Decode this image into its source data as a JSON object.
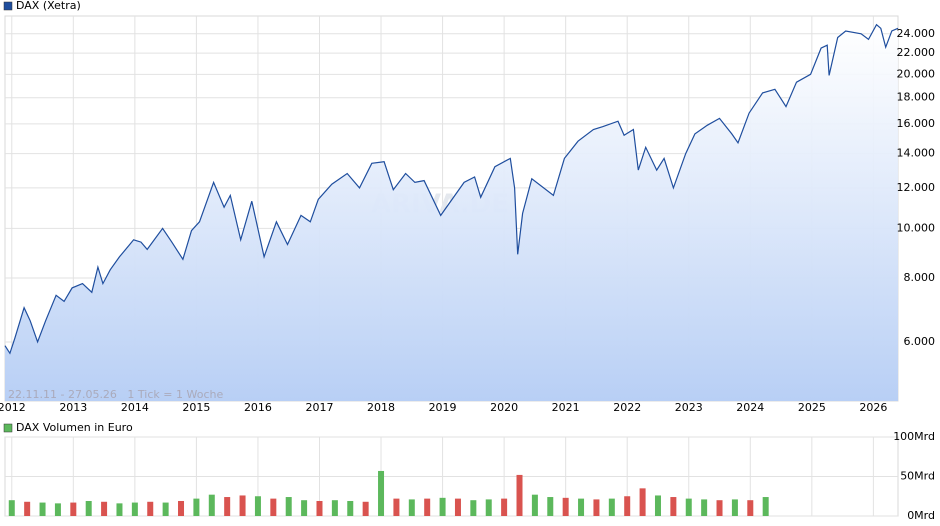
{
  "chart_data": [
    {
      "type": "line",
      "legend": "DAX (Xetra)",
      "annotation": "22.11.11 - 27.05.26   1 Tick = 1 Woche",
      "watermark": "ARIVA.DE",
      "log_scale": true,
      "grid": true,
      "color": "#1f4e9e",
      "fill_color": "#b8cff5",
      "xlim": [
        2011.89,
        2026.4
      ],
      "xticks": [
        2012,
        2013,
        2014,
        2015,
        2016,
        2017,
        2018,
        2019,
        2020,
        2021,
        2022,
        2023,
        2024,
        2025,
        2026
      ],
      "ylim": [
        4600,
        26000
      ],
      "yticks": [
        {
          "value": 6000,
          "label": "6.000"
        },
        {
          "value": 8000,
          "label": "8.000"
        },
        {
          "value": 10000,
          "label": "10.000"
        },
        {
          "value": 12000,
          "label": "12.000"
        },
        {
          "value": 14000,
          "label": "14.000"
        },
        {
          "value": 16000,
          "label": "16.000"
        },
        {
          "value": 18000,
          "label": "18.000"
        },
        {
          "value": 20000,
          "label": "20.000"
        },
        {
          "value": 22000,
          "label": "22.000"
        },
        {
          "value": 24000,
          "label": "24.000"
        }
      ],
      "x": [
        2011.89,
        2011.97,
        2012.05,
        2012.2,
        2012.3,
        2012.42,
        2012.55,
        2012.72,
        2012.85,
        2012.98,
        2013.15,
        2013.3,
        2013.4,
        2013.48,
        2013.6,
        2013.75,
        2013.98,
        2014.1,
        2014.2,
        2014.45,
        2014.6,
        2014.78,
        2014.92,
        2015.05,
        2015.28,
        2015.45,
        2015.55,
        2015.72,
        2015.9,
        2016.1,
        2016.3,
        2016.48,
        2016.7,
        2016.85,
        2016.98,
        2017.2,
        2017.45,
        2017.65,
        2017.85,
        2018.05,
        2018.2,
        2018.4,
        2018.55,
        2018.7,
        2018.97,
        2019.2,
        2019.35,
        2019.52,
        2019.62,
        2019.85,
        2020.1,
        2020.17,
        2020.22,
        2020.3,
        2020.45,
        2020.8,
        2020.98,
        2021.2,
        2021.45,
        2021.6,
        2021.85,
        2021.95,
        2022.1,
        2022.18,
        2022.3,
        2022.48,
        2022.6,
        2022.75,
        2022.95,
        2023.1,
        2023.3,
        2023.5,
        2023.7,
        2023.8,
        2023.98,
        2024.2,
        2024.4,
        2024.58,
        2024.75,
        2024.98,
        2025.15,
        2025.25,
        2025.28,
        2025.42,
        2025.55,
        2025.8,
        2025.92,
        2026.05,
        2026.12,
        2026.2,
        2026.3,
        2026.4
      ],
      "values": [
        5900,
        5700,
        6100,
        7000,
        6600,
        6000,
        6600,
        7400,
        7200,
        7650,
        7800,
        7500,
        8400,
        7800,
        8300,
        8800,
        9500,
        9400,
        9100,
        10000,
        9400,
        8700,
        9900,
        10300,
        12300,
        11000,
        11600,
        9500,
        11300,
        8800,
        10300,
        9300,
        10600,
        10300,
        11400,
        12200,
        12800,
        12000,
        13400,
        13500,
        11900,
        12800,
        12300,
        12400,
        10600,
        11600,
        12300,
        12600,
        11500,
        13200,
        13700,
        12000,
        8900,
        10700,
        12500,
        11600,
        13700,
        14800,
        15600,
        15800,
        16200,
        15200,
        15600,
        13000,
        14400,
        13000,
        13700,
        12000,
        14000,
        15300,
        15900,
        16400,
        15300,
        14700,
        16800,
        18400,
        18700,
        17300,
        19300,
        20000,
        22500,
        22800,
        19900,
        23600,
        24300,
        24000,
        23400,
        25000,
        24600,
        22600,
        24300,
        24600
      ]
    },
    {
      "type": "bar",
      "legend": "DAX Volumen in Euro",
      "color": "#5cb85c",
      "grid": true,
      "xlim": [
        2011.89,
        2026.4
      ],
      "xticks": [
        2012,
        2013,
        2014,
        2015,
        2016,
        2017,
        2018,
        2019,
        2020,
        2021,
        2022,
        2023,
        2024,
        2025,
        2026
      ],
      "ylim": [
        0,
        100
      ],
      "yticks": [
        {
          "value": 0,
          "label": "0Mrd"
        },
        {
          "value": 50,
          "label": "50Mrd"
        },
        {
          "value": 100,
          "label": "100Mrd"
        }
      ],
      "x": [
        2012,
        2012.25,
        2012.5,
        2012.75,
        2013,
        2013.25,
        2013.5,
        2013.75,
        2014,
        2014.25,
        2014.5,
        2014.75,
        2015,
        2015.25,
        2015.5,
        2015.75,
        2016,
        2016.25,
        2016.5,
        2016.75,
        2017,
        2017.25,
        2017.5,
        2017.75,
        2018,
        2018.25,
        2018.5,
        2018.75,
        2019,
        2019.25,
        2019.5,
        2019.75,
        2020,
        2020.25,
        2020.5,
        2020.75,
        2021,
        2021.25,
        2021.5,
        2021.75,
        2022,
        2022.25,
        2022.5,
        2022.75,
        2023,
        2023.25,
        2023.5,
        2023.75,
        2024,
        2024.25
      ],
      "values": [
        20,
        18,
        17,
        16,
        17,
        19,
        18,
        16,
        17,
        18,
        17,
        19,
        22,
        27,
        24,
        26,
        25,
        22,
        24,
        20,
        19,
        20,
        19,
        18,
        57,
        22,
        21,
        22,
        23,
        22,
        20,
        21,
        22,
        52,
        27,
        24,
        23,
        22,
        21,
        22,
        25,
        35,
        26,
        24,
        22,
        21,
        20,
        21,
        20,
        24
      ],
      "colors": [
        "#5cb85c",
        "#d9534f",
        "#5cb85c",
        "#5cb85c",
        "#d9534f",
        "#5cb85c",
        "#d9534f",
        "#5cb85c",
        "#5cb85c",
        "#d9534f",
        "#5cb85c",
        "#d9534f",
        "#5cb85c",
        "#5cb85c",
        "#d9534f",
        "#d9534f",
        "#5cb85c",
        "#d9534f",
        "#5cb85c",
        "#5cb85c",
        "#d9534f",
        "#5cb85c",
        "#5cb85c",
        "#d9534f",
        "#5cb85c",
        "#d9534f",
        "#5cb85c",
        "#d9534f",
        "#5cb85c",
        "#d9534f",
        "#5cb85c",
        "#5cb85c",
        "#d9534f",
        "#d9534f",
        "#5cb85c",
        "#5cb85c",
        "#d9534f",
        "#5cb85c",
        "#d9534f",
        "#5cb85c",
        "#d9534f",
        "#d9534f",
        "#5cb85c",
        "#d9534f",
        "#5cb85c",
        "#5cb85c",
        "#d9534f",
        "#5cb85c",
        "#d9534f",
        "#5cb85c"
      ]
    }
  ]
}
